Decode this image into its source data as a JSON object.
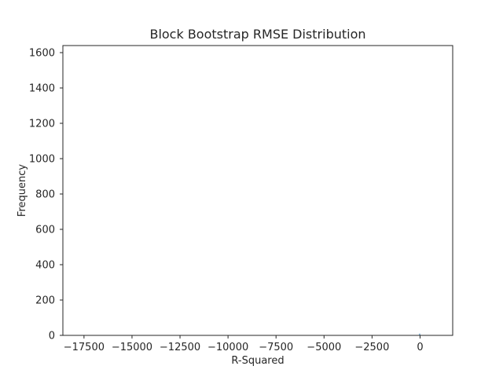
{
  "chart_data": {
    "type": "bar",
    "title": "Block Bootstrap RMSE Distribution",
    "xlabel": "R-Squared",
    "ylabel": "Frequency",
    "xlim": [
      -18600,
      1700
    ],
    "ylim": [
      0,
      1640
    ],
    "xticks": [
      -17500,
      -15000,
      -12500,
      -10000,
      -7500,
      -5000,
      -2500,
      0
    ],
    "xtick_labels": [
      "−17500",
      "−15000",
      "−12500",
      "−10000",
      "−7500",
      "−5000",
      "−2500",
      "0"
    ],
    "yticks": [
      0,
      200,
      400,
      600,
      800,
      1000,
      1200,
      1400,
      1600
    ],
    "ytick_labels": [
      "0",
      "200",
      "400",
      "600",
      "800",
      "1000",
      "1200",
      "1400",
      "1600"
    ],
    "grid": false,
    "legend": "none",
    "colors": {
      "bar": "#1f77b4",
      "axes": "#262626",
      "background": "#ffffff"
    },
    "bins": [
      {
        "x0": -40,
        "x1": 0,
        "value": 10
      }
    ]
  }
}
